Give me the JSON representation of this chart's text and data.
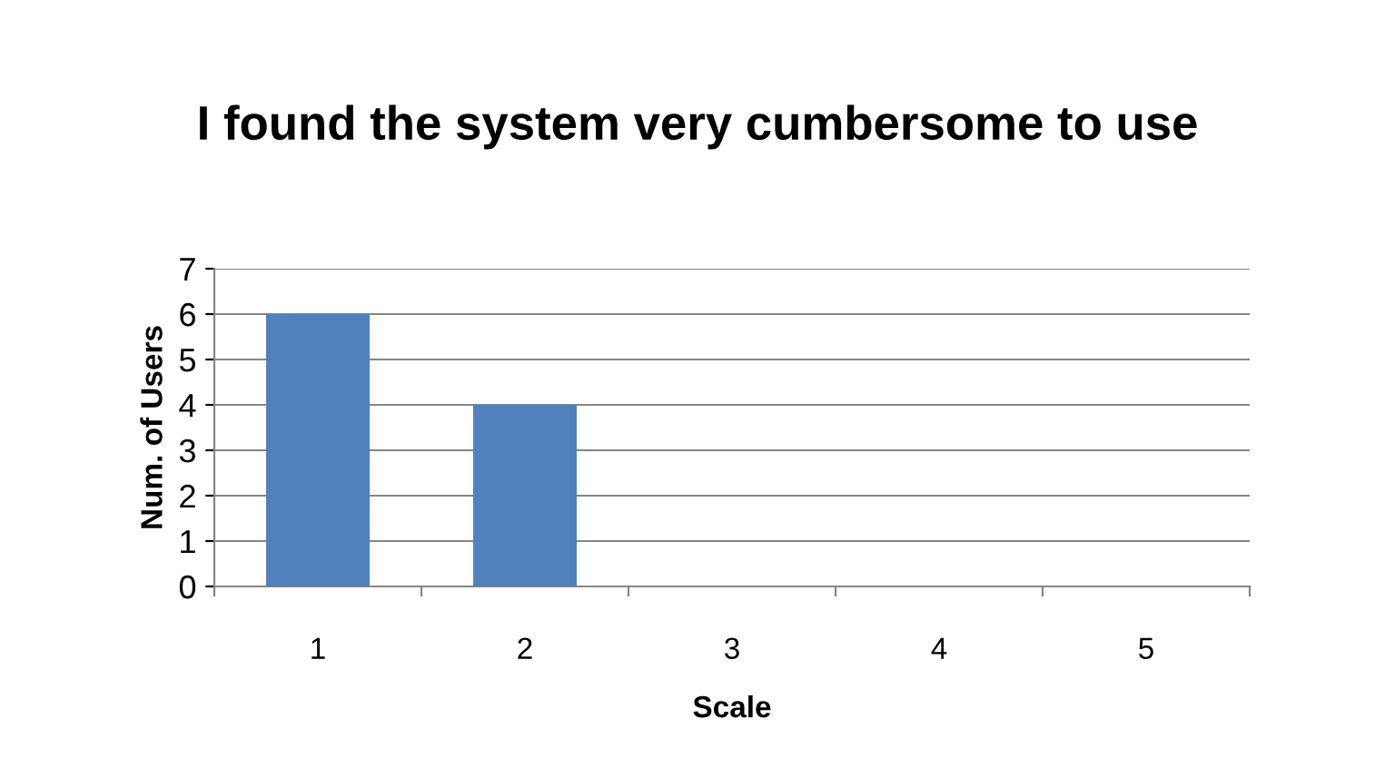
{
  "chart_data": {
    "type": "bar",
    "title": "I found the system very cumbersome to use",
    "xlabel": "Scale",
    "ylabel": "Num. of Users",
    "categories": [
      "1",
      "2",
      "3",
      "4",
      "5"
    ],
    "values": [
      6,
      4,
      0,
      0,
      0
    ],
    "color": "#4f81bd",
    "ylim": [
      0,
      7
    ],
    "yticks": [
      0,
      1,
      2,
      3,
      4,
      5,
      6,
      7
    ],
    "grid": "y",
    "legend": false
  }
}
